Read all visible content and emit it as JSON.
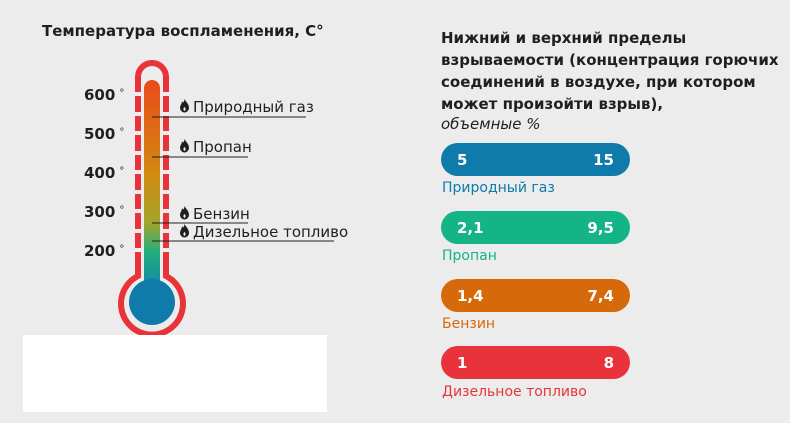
{
  "ignition": {
    "title": "Температура воспламенения, С°",
    "scale": [
      {
        "value": "600",
        "unit": "°"
      },
      {
        "value": "500",
        "unit": "°"
      },
      {
        "value": "400",
        "unit": "°"
      },
      {
        "value": "300",
        "unit": "°"
      },
      {
        "value": "200",
        "unit": "°"
      }
    ],
    "fuels": [
      {
        "name": "Природный газ",
        "icon": "flame-icon"
      },
      {
        "name": "Пропан",
        "icon": "flame-icon"
      },
      {
        "name": "Бензин",
        "icon": "flame-icon"
      },
      {
        "name": "Дизельное топливо",
        "icon": "flame-icon"
      }
    ]
  },
  "explosive": {
    "title": "Нижний и верхний пределы взрываемости (концентрация горючих соединений в воздухе, при котором может произойти взрыв),",
    "subtitle": "объемные %",
    "items": [
      {
        "name": "Природный газ",
        "lower": "5",
        "upper": "15",
        "color": "#0e7bab"
      },
      {
        "name": "Пропан",
        "lower": "2,1",
        "upper": "9,5",
        "color": "#14b487"
      },
      {
        "name": "Бензин",
        "lower": "1,4",
        "upper": "7,4",
        "color": "#d66a0a"
      },
      {
        "name": "Дизельное топливо",
        "lower": "1",
        "upper": "8",
        "color": "#e8333a"
      }
    ]
  },
  "colors": {
    "thermometer_frame": "#e8333a",
    "bulb": "#0e7bab"
  }
}
